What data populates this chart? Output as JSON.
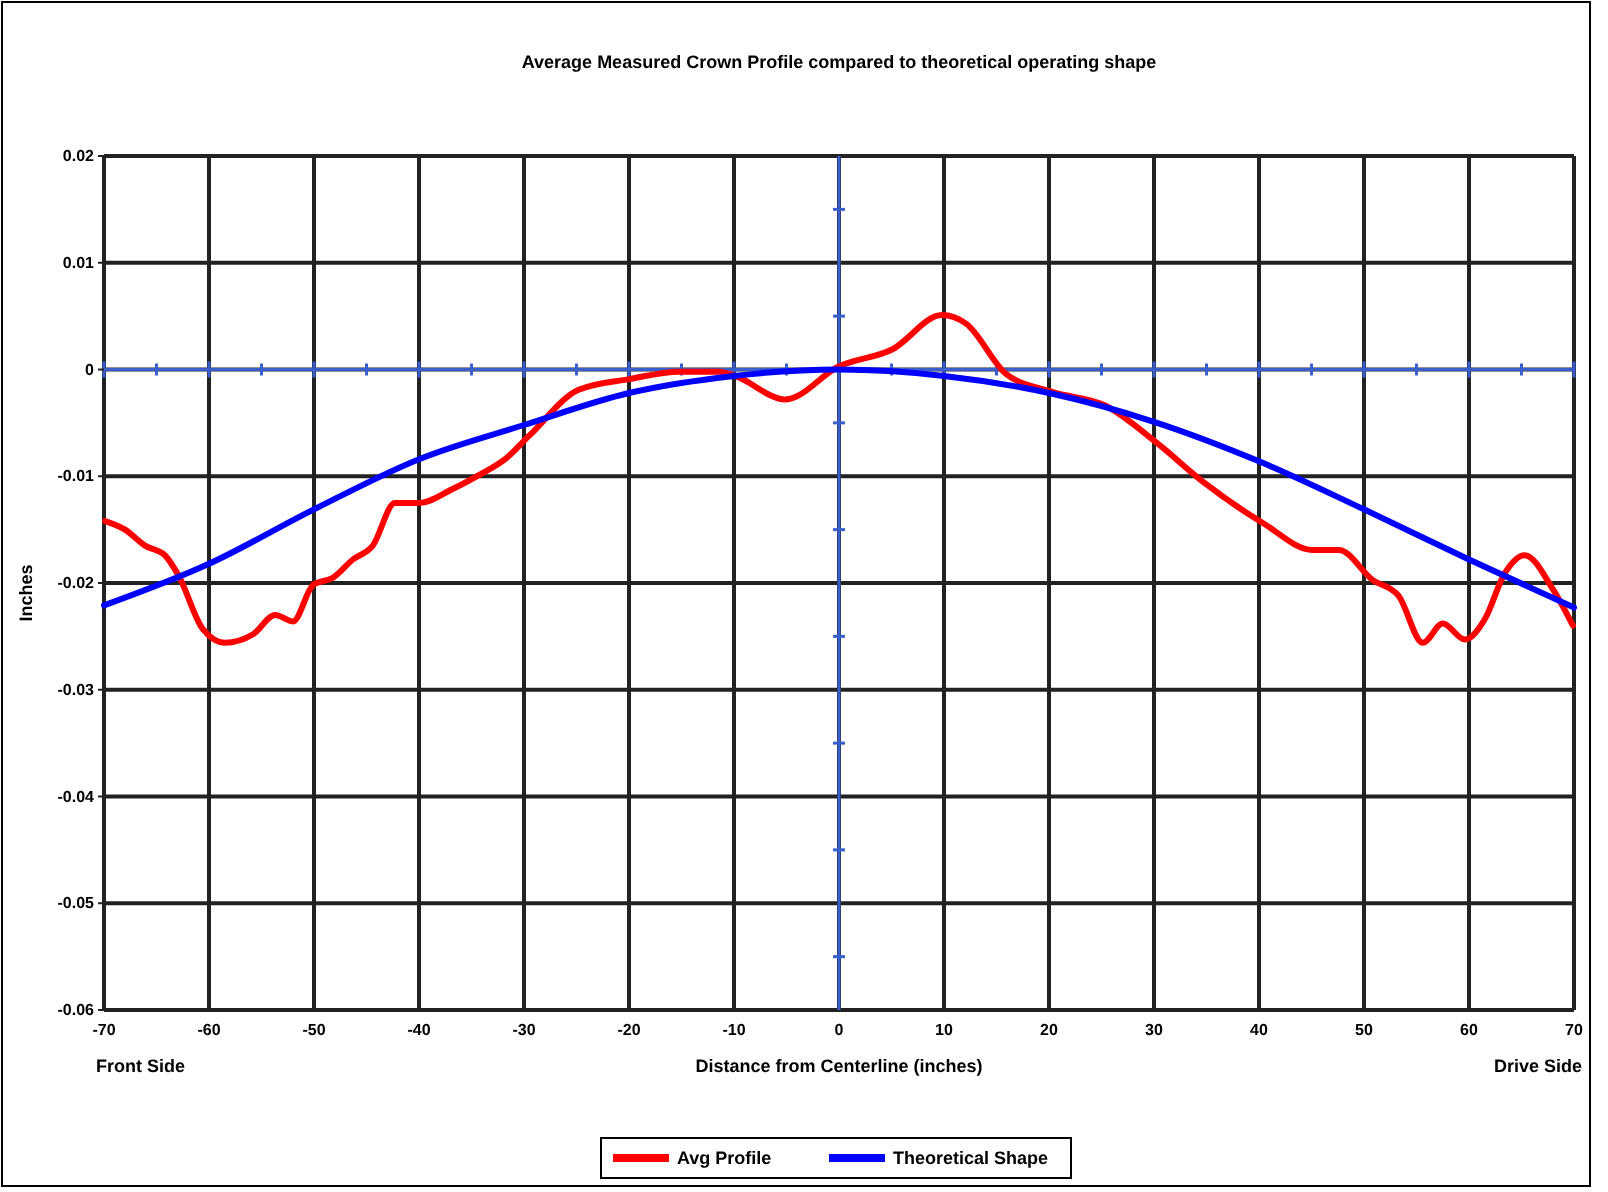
{
  "chart_data": {
    "type": "line",
    "title": "Average Measured Crown Profile compared to theoretical operating shape",
    "xlabel": "Distance from Centerline (inches)",
    "ylabel": "Inches",
    "annotations": [
      "Front Side",
      "Drive Side"
    ],
    "xlim": [
      -70,
      70
    ],
    "xticks": [
      -70,
      -60,
      -50,
      -40,
      -30,
      -20,
      -10,
      0,
      10,
      20,
      30,
      40,
      50,
      60,
      70
    ],
    "ylim": [
      -0.06,
      0.02
    ],
    "yticks": [
      -0.06,
      -0.05,
      -0.04,
      -0.03,
      -0.02,
      -0.01,
      0,
      0.01,
      0.02
    ],
    "grid": true,
    "legend": "bottom",
    "marker": "none",
    "line_style": "solid",
    "series": [
      {
        "name": "Avg Profile",
        "color": "#ff0000",
        "x": [
          -69.9,
          -68,
          -66.1,
          -64.2,
          -62.9,
          -60.6,
          -58.5,
          -55.8,
          -53.7,
          -52,
          -50.1,
          -48.2,
          -46.3,
          -44.4,
          -42.3,
          -40,
          -36.8,
          -34.3,
          -31.8,
          -29.5,
          -24.8,
          -20,
          -15.2,
          -11.4,
          -9.9,
          -5.1,
          0,
          5.1,
          9.8,
          12.1,
          15.9,
          20.3,
          25.4,
          30.3,
          34.9,
          40.4,
          45.1,
          47.6,
          50.8,
          53.3,
          55.6,
          57.5,
          59.6,
          61.5,
          63.4,
          65.3,
          68,
          69.9
        ],
        "values": [
          -0.0142,
          -0.015,
          -0.0165,
          -0.0174,
          -0.0193,
          -0.0243,
          -0.0256,
          -0.0248,
          -0.023,
          -0.0236,
          -0.0202,
          -0.0195,
          -0.0178,
          -0.0165,
          -0.0125,
          -0.0125,
          -0.0112,
          -0.0099,
          -0.0084,
          -0.0062,
          -0.0019,
          -0.0009,
          -0.0002,
          -0.0002,
          -0.0006,
          -0.0028,
          0.0003,
          0.0019,
          0.0051,
          0.0043,
          -0.0004,
          -0.0021,
          -0.0034,
          -0.0069,
          -0.0107,
          -0.0144,
          -0.0169,
          -0.0169,
          -0.0197,
          -0.0212,
          -0.0256,
          -0.0238,
          -0.0253,
          -0.0234,
          -0.0191,
          -0.0174,
          -0.0206,
          -0.024
        ]
      },
      {
        "name": "Theoretical Shape",
        "color": "#0000ff",
        "x": [
          -70,
          -60,
          -50,
          -40,
          -30,
          -20,
          -10,
          0,
          10,
          20,
          30,
          40,
          50,
          60,
          70
        ],
        "values": [
          -0.0221,
          -0.0182,
          -0.0131,
          -0.0084,
          -0.0052,
          -0.0022,
          -0.0006,
          0,
          -0.0006,
          -0.0022,
          -0.0049,
          -0.0086,
          -0.0131,
          -0.0178,
          -0.0223
        ]
      }
    ]
  }
}
